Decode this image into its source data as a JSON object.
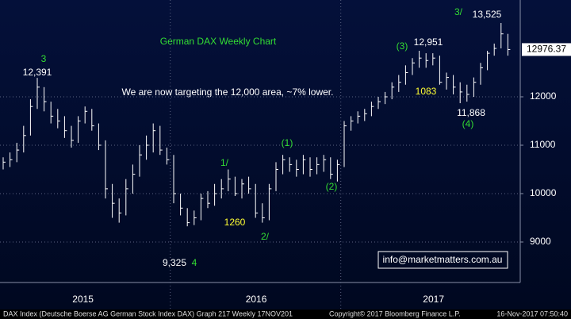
{
  "chart_data": {
    "type": "ohlc",
    "title": "German DAX Weekly Chart",
    "subtitle": "We are now targeting the 12,000 area, ~7% lower.",
    "series": [
      {
        "name": "DAX Index",
        "color": "#ffffff",
        "high": [
          10750,
          10850,
          11050,
          11400,
          11950,
          12391,
          12200,
          11900,
          11750,
          11600,
          11400,
          11600,
          11800,
          11750,
          11450,
          11100,
          10200,
          9900,
          10300,
          10600,
          11000,
          11200,
          11450,
          11400,
          10950,
          10800,
          10000,
          9700,
          9650,
          10000,
          10050,
          10200,
          10300,
          10500,
          10350,
          10300,
          10350,
          10200,
          9800,
          10200,
          10650,
          10800,
          10750,
          10700,
          10800,
          10750,
          10750,
          10800,
          10750,
          10700,
          11500,
          11600,
          11700,
          11750,
          11900,
          12000,
          12100,
          12300,
          12450,
          12650,
          12800,
          12951,
          12900,
          12900,
          12850,
          12500,
          12450,
          12300,
          12250,
          12400,
          12700,
          12950,
          13100,
          13525,
          13300
        ],
        "low": [
          10500,
          10550,
          10650,
          10850,
          11200,
          11750,
          11700,
          11450,
          11350,
          11150,
          10950,
          11050,
          11450,
          11300,
          10900,
          9900,
          9500,
          9400,
          9550,
          10000,
          10350,
          10700,
          10850,
          10800,
          10600,
          9800,
          9550,
          9325,
          9350,
          9450,
          9700,
          9750,
          9900,
          10050,
          9950,
          9900,
          10000,
          9500,
          9400,
          9450,
          10050,
          10400,
          10450,
          10350,
          10400,
          10350,
          10400,
          10450,
          10300,
          10250,
          10550,
          11300,
          11450,
          11500,
          11600,
          11750,
          11850,
          11950,
          12100,
          12250,
          12450,
          12600,
          12600,
          12650,
          12250,
          12150,
          12050,
          11868,
          11900,
          12000,
          12250,
          12550,
          12850,
          13000,
          12850
        ],
        "close": [
          10650,
          10700,
          10900,
          11200,
          11800,
          12200,
          11900,
          11600,
          11500,
          11300,
          11100,
          11500,
          11700,
          11400,
          11000,
          10100,
          9800,
          9600,
          10100,
          10400,
          10800,
          11000,
          11300,
          10900,
          10700,
          10000,
          9700,
          9400,
          9500,
          9900,
          9800,
          10000,
          10100,
          10300,
          10000,
          10200,
          10100,
          9600,
          9500,
          10100,
          10500,
          10700,
          10600,
          10500,
          10700,
          10500,
          10600,
          10700,
          10400,
          10600,
          11400,
          11500,
          11600,
          11650,
          11800,
          11900,
          12000,
          12200,
          12300,
          12500,
          12700,
          12800,
          12750,
          12800,
          12300,
          12400,
          12200,
          12100,
          12050,
          12300,
          12600,
          12900,
          13000,
          13300,
          12976.37
        ]
      }
    ],
    "ylim": [
      8180,
      14000
    ],
    "yticks": [
      9000,
      10000,
      11000,
      12000
    ],
    "xticks": [
      {
        "value": 11.7,
        "label": "2015"
      },
      {
        "value": 37.1,
        "label": "2016"
      },
      {
        "value": 63.1,
        "label": "2017"
      }
    ],
    "xgrid": [
      24.5,
      49.5
    ],
    "grid": true,
    "annotations": [
      {
        "text": "3",
        "color": "#33dd33"
      },
      {
        "text": "12,391",
        "color": "#ffffff"
      },
      {
        "text": "9,325",
        "color": "#ffffff"
      },
      {
        "text": "4",
        "color": "#33dd33"
      },
      {
        "text": "1/",
        "color": "#33dd33"
      },
      {
        "text": "1260",
        "color": "#ffff33"
      },
      {
        "text": "2/",
        "color": "#33dd33"
      },
      {
        "text": "(1)",
        "color": "#33dd33"
      },
      {
        "text": "(2)",
        "color": "#33dd33"
      },
      {
        "text": "(3)",
        "color": "#33dd33"
      },
      {
        "text": "12,951",
        "color": "#ffffff"
      },
      {
        "text": "1083",
        "color": "#ffff33"
      },
      {
        "text": "11,868",
        "color": "#ffffff"
      },
      {
        "text": "(4)",
        "color": "#33dd33"
      },
      {
        "text": "3/",
        "color": "#33dd33"
      },
      {
        "text": "13,525",
        "color": "#ffffff"
      }
    ],
    "watermark": "info@marketmatters.com.au"
  },
  "footer": {
    "left": "DAX Index (Deutsche Boerse AG German Stock Index DAX) Graph 217  Weekly 17NOV201",
    "middle": "Copyright© 2017 Bloomberg Finance L.P.",
    "right": "16-Nov-2017 07:50:40"
  }
}
